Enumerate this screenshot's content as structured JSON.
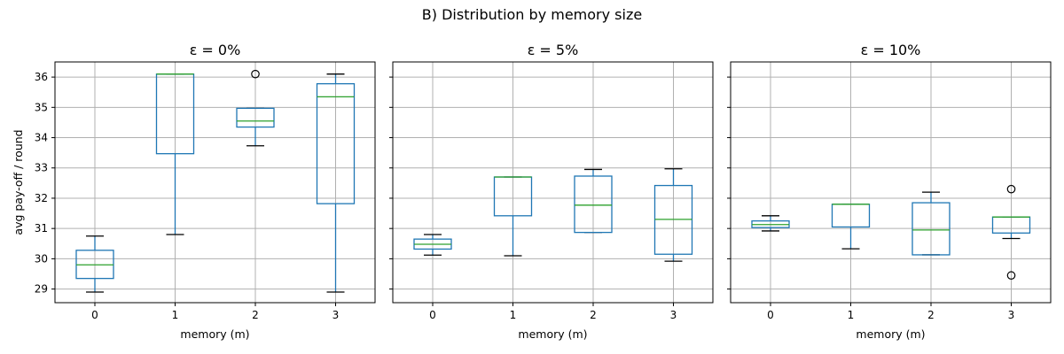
{
  "chart_data": {
    "type": "box",
    "title": "B) Distribution by memory size",
    "ylabel": "avg pay-off / round",
    "xlabel": "memory (m)",
    "ylim": [
      28.55,
      36.5
    ],
    "yticks": [
      29,
      30,
      31,
      32,
      33,
      34,
      35,
      36
    ],
    "categories": [
      "0",
      "1",
      "2",
      "3"
    ],
    "grid": true,
    "colors": {
      "box": "#1f77b4",
      "median": "#2ca02c",
      "whisker": "#1f77b4",
      "outlier": "#000000"
    },
    "panels": [
      {
        "title": "ε = 0%",
        "boxes": [
          {
            "category": "0",
            "whisker_low": 28.9,
            "q1": 29.35,
            "median": 29.8,
            "q3": 30.28,
            "whisker_high": 30.75,
            "outliers": []
          },
          {
            "category": "1",
            "whisker_low": 30.8,
            "q1": 33.47,
            "median": 36.1,
            "q3": 36.1,
            "whisker_high": 36.1,
            "outliers": []
          },
          {
            "category": "2",
            "whisker_low": 33.73,
            "q1": 34.35,
            "median": 34.55,
            "q3": 34.97,
            "whisker_high": 34.97,
            "outliers": [
              36.1
            ]
          },
          {
            "category": "3",
            "whisker_low": 28.9,
            "q1": 31.82,
            "median": 35.35,
            "q3": 35.78,
            "whisker_high": 36.1,
            "outliers": []
          }
        ]
      },
      {
        "title": "ε = 5%",
        "boxes": [
          {
            "category": "0",
            "whisker_low": 30.12,
            "q1": 30.32,
            "median": 30.48,
            "q3": 30.65,
            "whisker_high": 30.8,
            "outliers": []
          },
          {
            "category": "1",
            "whisker_low": 30.1,
            "q1": 31.42,
            "median": 32.7,
            "q3": 32.7,
            "whisker_high": 32.7,
            "outliers": []
          },
          {
            "category": "2",
            "whisker_low": 30.87,
            "q1": 30.87,
            "median": 31.77,
            "q3": 32.73,
            "whisker_high": 32.95,
            "outliers": []
          },
          {
            "category": "3",
            "whisker_low": 29.92,
            "q1": 30.15,
            "median": 31.3,
            "q3": 32.42,
            "whisker_high": 32.97,
            "outliers": []
          }
        ]
      },
      {
        "title": "ε = 10%",
        "boxes": [
          {
            "category": "0",
            "whisker_low": 30.92,
            "q1": 31.03,
            "median": 31.13,
            "q3": 31.25,
            "whisker_high": 31.42,
            "outliers": []
          },
          {
            "category": "1",
            "whisker_low": 30.33,
            "q1": 31.05,
            "median": 31.8,
            "q3": 31.8,
            "whisker_high": 31.8,
            "outliers": []
          },
          {
            "category": "2",
            "whisker_low": 30.13,
            "q1": 30.13,
            "median": 30.95,
            "q3": 31.85,
            "whisker_high": 32.2,
            "outliers": []
          },
          {
            "category": "3",
            "whisker_low": 30.67,
            "q1": 30.85,
            "median": 31.38,
            "q3": 31.38,
            "whisker_high": 31.38,
            "outliers": [
              32.3,
              29.45
            ]
          }
        ]
      }
    ]
  }
}
